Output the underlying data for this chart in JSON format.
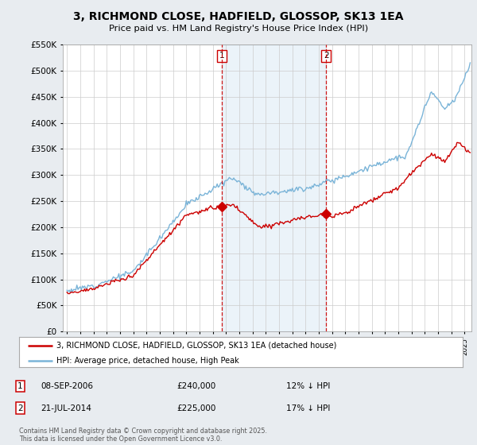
{
  "title": "3, RICHMOND CLOSE, HADFIELD, GLOSSOP, SK13 1EA",
  "subtitle": "Price paid vs. HM Land Registry's House Price Index (HPI)",
  "legend_line1": "3, RICHMOND CLOSE, HADFIELD, GLOSSOP, SK13 1EA (detached house)",
  "legend_line2": "HPI: Average price, detached house, High Peak",
  "annotation1_label": "1",
  "annotation1_date": "08-SEP-2006",
  "annotation1_price": "£240,000",
  "annotation1_hpi": "12% ↓ HPI",
  "annotation2_label": "2",
  "annotation2_date": "21-JUL-2014",
  "annotation2_price": "£225,000",
  "annotation2_hpi": "17% ↓ HPI",
  "footer": "Contains HM Land Registry data © Crown copyright and database right 2025.\nThis data is licensed under the Open Government Licence v3.0.",
  "sale1_x": 2006.68,
  "sale1_y": 240000,
  "sale2_x": 2014.55,
  "sale2_y": 225000,
  "hpi_color": "#7ab4d8",
  "price_color": "#cc0000",
  "vline_color": "#cc0000",
  "background_color": "#e8ecf0",
  "plot_bg": "#ffffff",
  "ylim": [
    0,
    550000
  ],
  "xlim_start": 1994.7,
  "xlim_end": 2025.5
}
